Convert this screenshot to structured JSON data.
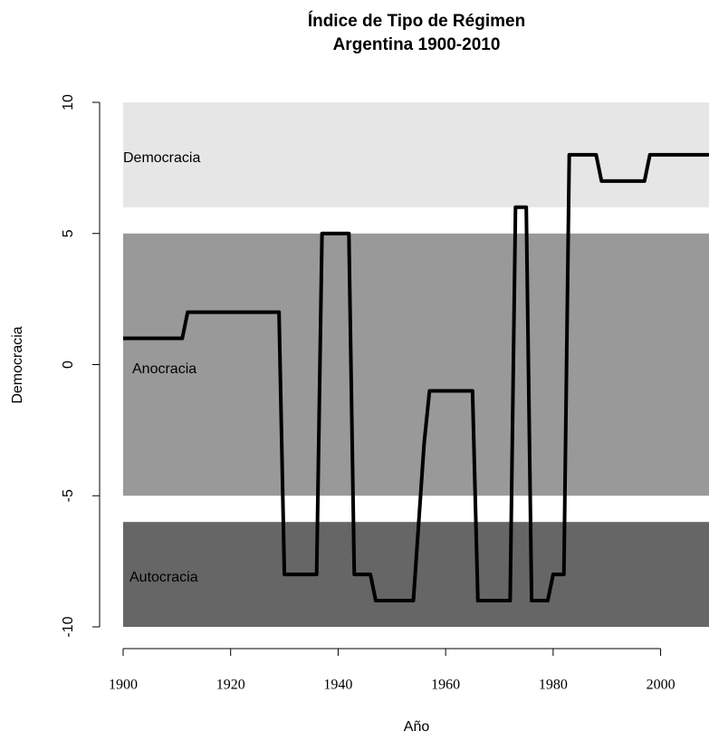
{
  "chart_data": {
    "type": "line",
    "title": "Índice de Tipo de Régimen",
    "subtitle": "Argentina 1900-2010",
    "xlabel": "Año",
    "ylabel": "Democracia",
    "x": [
      1900,
      1911,
      1912,
      1929,
      1930,
      1936,
      1937,
      1942,
      1943,
      1946,
      1947,
      1954,
      1955,
      1956,
      1957,
      1965,
      1966,
      1972,
      1973,
      1975,
      1976,
      1979,
      1980,
      1982,
      1983,
      1988,
      1989,
      1997,
      1998,
      2009
    ],
    "series": [
      {
        "name": "Democracia",
        "color": "#000000",
        "values": [
          1,
          1,
          2,
          2,
          -8,
          -8,
          5,
          5,
          -8,
          -8,
          -9,
          -9,
          -6,
          -3,
          -1,
          -1,
          -9,
          -9,
          6,
          6,
          -9,
          -9,
          -8,
          -8,
          8,
          8,
          7,
          7,
          8,
          8
        ]
      }
    ],
    "bands": [
      {
        "label": "Democracia",
        "range": [
          6,
          10
        ],
        "color": "#e6e6e6"
      },
      {
        "label": "Anocracia",
        "range": [
          -5,
          5
        ],
        "color": "#999999"
      },
      {
        "label": "Autocracia",
        "range": [
          -10,
          -6
        ],
        "color": "#666666"
      }
    ],
    "xlim": [
      1900,
      2009
    ],
    "ylim": [
      -10,
      10
    ],
    "xticks": [
      1900,
      1920,
      1940,
      1960,
      1980,
      2000
    ],
    "yticks": [
      -10,
      -5,
      0,
      5,
      10
    ]
  }
}
